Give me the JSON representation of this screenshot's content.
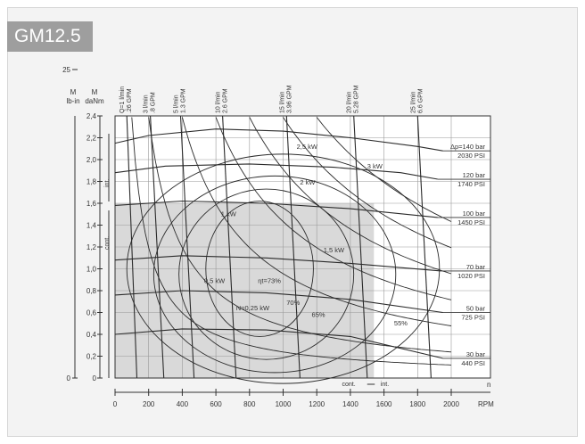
{
  "title": "GM12.5",
  "chart_data": {
    "type": "line",
    "xlabel": "n",
    "x_unit": "RPM",
    "xlim": [
      0,
      2000
    ],
    "x_ticks": [
      "0",
      "200",
      "400",
      "600",
      "800",
      "1000",
      "1200",
      "1400",
      "1600",
      "1800",
      "2000"
    ],
    "y_left_daNm": {
      "label": "M",
      "unit": "daNm",
      "ylim": [
        0,
        2.4
      ],
      "ticks": [
        "0",
        "0,2",
        "0,4",
        "0,6",
        "0,8",
        "1,0",
        "1,2",
        "1,4",
        "1,6",
        "1,8",
        "2,0",
        "2,2",
        "2,4"
      ]
    },
    "y_left_lbin": {
      "label": "M",
      "unit": "lb-in",
      "ticks": [
        "0",
        "25",
        "50",
        "75",
        "100",
        "125",
        "150",
        "175",
        "200"
      ]
    },
    "flow_lines": [
      {
        "label": "Q=1 l/min",
        "gpm": ".26 GPM",
        "x": 70
      },
      {
        "label": "3 l/min",
        "gpm": ".8 GPM",
        "x": 210
      },
      {
        "label": "5 l/min",
        "gpm": "1.3 GPM",
        "x": 390
      },
      {
        "label": "10 l/min",
        "gpm": "2.6 GPM",
        "x": 640
      },
      {
        "label": "15 l/min",
        "gpm": "3.96 GPM",
        "x": 1020
      },
      {
        "label": "20 l/min",
        "gpm": "5.28 GPM",
        "x": 1420
      },
      {
        "label": "25 l/min",
        "gpm": "6.6 GPM",
        "x": 1800
      }
    ],
    "pressure_lines": [
      {
        "bar": "Δp=140 bar",
        "psi": "2030 PSI",
        "points": [
          [
            0,
            2.15
          ],
          [
            200,
            2.22
          ],
          [
            600,
            2.28
          ],
          [
            1000,
            2.26
          ],
          [
            1400,
            2.2
          ],
          [
            1800,
            2.12
          ],
          [
            1950,
            2.08
          ]
        ]
      },
      {
        "bar": "120 bar",
        "psi": "1740 PSI",
        "points": [
          [
            0,
            1.88
          ],
          [
            300,
            1.94
          ],
          [
            800,
            1.96
          ],
          [
            1300,
            1.93
          ],
          [
            1700,
            1.88
          ],
          [
            1920,
            1.82
          ]
        ]
      },
      {
        "bar": "100 bar",
        "psi": "1450 PSI",
        "points": [
          [
            0,
            1.58
          ],
          [
            400,
            1.62
          ],
          [
            900,
            1.6
          ],
          [
            1400,
            1.55
          ],
          [
            1920,
            1.47
          ]
        ]
      },
      {
        "bar": "70 bar",
        "psi": "1020 PSI",
        "points": [
          [
            0,
            1.08
          ],
          [
            400,
            1.12
          ],
          [
            900,
            1.1
          ],
          [
            1400,
            1.05
          ],
          [
            1940,
            0.98
          ]
        ]
      },
      {
        "bar": "50 bar",
        "psi": "725 PSI",
        "points": [
          [
            0,
            0.76
          ],
          [
            400,
            0.8
          ],
          [
            900,
            0.78
          ],
          [
            1400,
            0.72
          ],
          [
            1950,
            0.6
          ]
        ]
      },
      {
        "bar": "30 bar",
        "psi": "440 PSI",
        "points": [
          [
            0,
            0.4
          ],
          [
            400,
            0.45
          ],
          [
            900,
            0.44
          ],
          [
            1400,
            0.38
          ],
          [
            1950,
            0.18
          ]
        ]
      }
    ],
    "power_labels": [
      {
        "text": "N=0,25 kW",
        "x": 720,
        "y": 0.62
      },
      {
        "text": "0,5 kW",
        "x": 530,
        "y": 0.87
      },
      {
        "text": "1 kW",
        "x": 630,
        "y": 1.48
      },
      {
        "text": "1,5 kW",
        "x": 1240,
        "y": 1.15
      },
      {
        "text": "2 kW",
        "x": 1100,
        "y": 1.77
      },
      {
        "text": "2,5 kW",
        "x": 1080,
        "y": 2.1
      },
      {
        "text": "3 kW",
        "x": 1500,
        "y": 1.92
      }
    ],
    "efficiency_labels": [
      {
        "text": "ηt=73%",
        "x": 850,
        "y": 0.87
      },
      {
        "text": "70%",
        "x": 1020,
        "y": 0.67
      },
      {
        "text": "65%",
        "x": 1170,
        "y": 0.56
      },
      {
        "text": "55%",
        "x": 1660,
        "y": 0.48
      }
    ],
    "cont_region": {
      "x": [
        0,
        1540
      ],
      "y": [
        0,
        1.6
      ]
    },
    "int_torque_label": "int.",
    "cont_torque_label": "cont.",
    "cont_speed_label": "cont.",
    "int_speed_label": "int."
  }
}
